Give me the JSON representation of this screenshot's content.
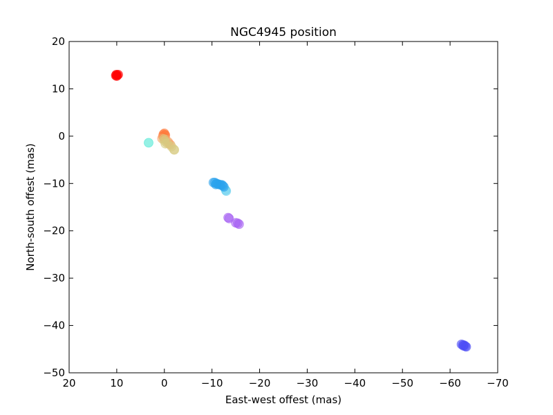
{
  "chart_data": {
    "type": "scatter",
    "title": "NGC4945 position",
    "xlabel": "East-west offest (mas)",
    "ylabel": "North-south offest (mas)",
    "xlim": [
      20,
      -70
    ],
    "ylim": [
      -50,
      20
    ],
    "x_ticks": [
      20,
      10,
      0,
      -10,
      -20,
      -30,
      -40,
      -50,
      -60,
      -70
    ],
    "y_ticks": [
      20,
      10,
      0,
      -10,
      -20,
      -30,
      -40,
      -50
    ],
    "x_tick_labels": [
      "20",
      "10",
      "0",
      "−10",
      "−20",
      "−30",
      "−40",
      "−50",
      "−60",
      "−70"
    ],
    "y_tick_labels": [
      "20",
      "10",
      "0",
      "−10",
      "−20",
      "−30",
      "−40",
      "−50"
    ],
    "grid": false,
    "legend": "none",
    "colormap": "rainbow",
    "clusters": [
      {
        "color": "#ff0000",
        "points": [
          [
            10.2,
            12.8
          ],
          [
            9.9,
            12.9
          ],
          [
            10.0,
            12.7
          ],
          [
            9.7,
            13.0
          ],
          [
            10.1,
            13.0
          ]
        ]
      },
      {
        "color": "#ff7a3c",
        "points": [
          [
            0.2,
            0.4
          ],
          [
            0.0,
            0.6
          ],
          [
            -0.1,
            0.3
          ],
          [
            0.3,
            0.0
          ],
          [
            0.1,
            -0.3
          ],
          [
            -0.2,
            0.2
          ]
        ]
      },
      {
        "color": "#f7a46a",
        "points": [
          [
            0.5,
            -0.5
          ],
          [
            -0.3,
            -0.7
          ],
          [
            -0.8,
            -1.2
          ],
          [
            -1.0,
            -1.6
          ],
          [
            -1.3,
            -1.8
          ]
        ]
      },
      {
        "color": "#d7cb82",
        "points": [
          [
            0.0,
            -1.0
          ],
          [
            -0.2,
            -1.6
          ],
          [
            -0.6,
            -1.5
          ],
          [
            -1.5,
            -2.2
          ],
          [
            -2.0,
            -2.8
          ],
          [
            -2.1,
            -2.9
          ],
          [
            0.1,
            -0.6
          ]
        ]
      },
      {
        "color": "#3ee6d0",
        "points": [
          [
            3.3,
            -1.4
          ]
        ]
      },
      {
        "color": "#66d0ee",
        "points": [
          [
            -13.0,
            -11.6
          ],
          [
            -12.9,
            -11.4
          ]
        ]
      },
      {
        "color": "#2aa2ec",
        "points": [
          [
            -10.3,
            -9.8
          ],
          [
            -10.6,
            -9.8
          ],
          [
            -10.9,
            -10.0
          ],
          [
            -11.2,
            -10.1
          ],
          [
            -11.5,
            -10.2
          ],
          [
            -11.8,
            -10.3
          ],
          [
            -12.1,
            -10.3
          ],
          [
            -12.3,
            -10.5
          ],
          [
            -12.5,
            -10.7
          ],
          [
            -10.8,
            -10.2
          ]
        ]
      },
      {
        "color": "#a45cf2",
        "points": [
          [
            -13.4,
            -17.2
          ],
          [
            -13.6,
            -17.4
          ],
          [
            -15.0,
            -18.3
          ],
          [
            -15.4,
            -18.4
          ],
          [
            -15.7,
            -18.6
          ]
        ]
      },
      {
        "color": "#4d4df5",
        "points": [
          [
            -62.4,
            -44.0
          ],
          [
            -62.7,
            -44.1
          ],
          [
            -63.0,
            -44.2
          ],
          [
            -63.2,
            -44.4
          ],
          [
            -63.4,
            -44.5
          ],
          [
            -62.8,
            -44.3
          ]
        ]
      }
    ]
  }
}
